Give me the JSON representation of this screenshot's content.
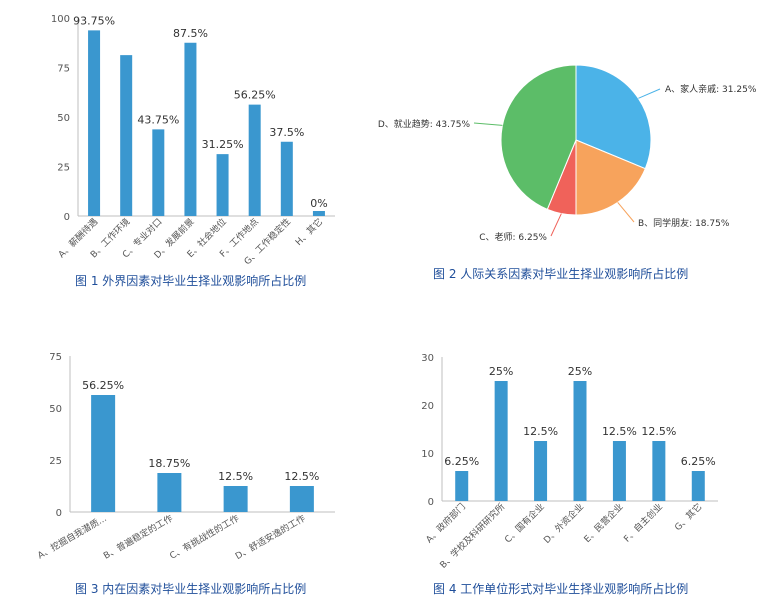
{
  "chart_data": [
    {
      "type": "bar",
      "color": "#3a97cf",
      "categories": [
        "A、薪酬待遇",
        "B、工作环境",
        "C、专业对口",
        "D、发展前景",
        "E、社会地位",
        "F、工作地点",
        "G、工作稳定性",
        "H、其它"
      ],
      "values": [
        93.75,
        81.25,
        43.75,
        87.5,
        31.25,
        56.25,
        37.5,
        0
      ],
      "data_labels": [
        "93.75%",
        "",
        "43.75%",
        "87.5%",
        "31.25%",
        "56.25%",
        "37.5%",
        "0%"
      ],
      "yticks": [
        "0",
        "25",
        "50",
        "75",
        "100"
      ],
      "ylim": [
        0,
        100
      ],
      "caption": "图 1 外界因素对毕业生择业观影响所占比例"
    },
    {
      "type": "pie",
      "slices": [
        {
          "label": "A、家人亲戚: 31.25%",
          "value": 31.25,
          "color": "#4bb3e8"
        },
        {
          "label": "B、同学朋友: 18.75%",
          "value": 18.75,
          "color": "#f7a35c"
        },
        {
          "label": "C、老师: 6.25%",
          "value": 6.25,
          "color": "#f0625a"
        },
        {
          "label": "D、就业趋势: 43.75%",
          "value": 43.75,
          "color": "#5cbd68"
        }
      ],
      "caption": "图 2 人际关系因素对毕业生择业观影响所占比例"
    },
    {
      "type": "bar",
      "color": "#3a97cf",
      "categories": [
        "A、挖掘自我潜质...",
        "B、普遍稳定的工作",
        "C、有挑战性的工作",
        "D、舒适安逸的工作"
      ],
      "values": [
        56.25,
        18.75,
        12.5,
        12.5
      ],
      "data_labels": [
        "56.25%",
        "18.75%",
        "12.5%",
        "12.5%"
      ],
      "yticks": [
        "0",
        "25",
        "50",
        "75"
      ],
      "ylim": [
        0,
        75
      ],
      "caption": "图 3 内在因素对毕业生择业观影响所占比例"
    },
    {
      "type": "bar",
      "color": "#3a97cf",
      "categories": [
        "A、政府部门",
        "B、学校及科研研究所",
        "C、国有企业",
        "D、外资企业",
        "E、民营企业",
        "F、自主创业",
        "G、其它"
      ],
      "values": [
        6.25,
        25,
        12.5,
        25,
        12.5,
        12.5,
        6.25
      ],
      "data_labels": [
        "6.25%",
        "25%",
        "12.5%",
        "25%",
        "12.5%",
        "12.5%",
        "6.25%"
      ],
      "yticks": [
        "0",
        "10",
        "20",
        "30"
      ],
      "ylim": [
        0,
        30
      ],
      "caption": "图 4 工作单位形式对毕业生择业观影响所占比例"
    }
  ]
}
